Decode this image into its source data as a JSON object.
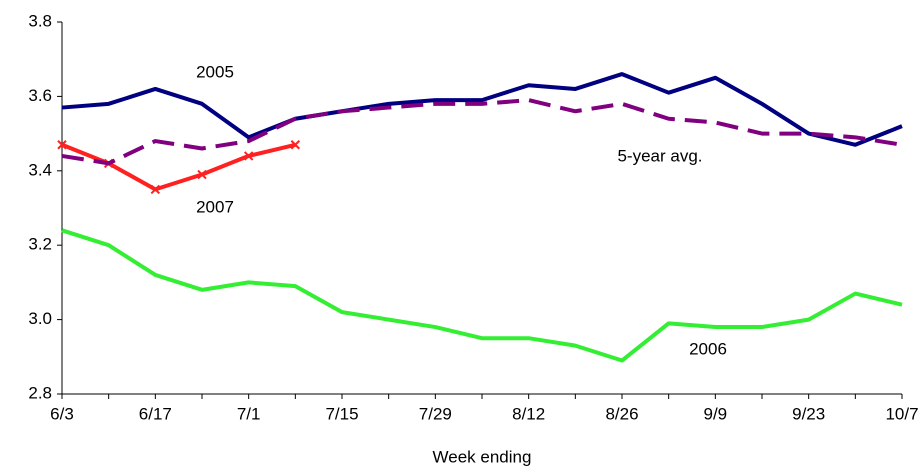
{
  "chart_data": {
    "type": "line",
    "x_label": "Week ending",
    "categories": [
      "6/3",
      null,
      "6/17",
      null,
      "7/1",
      null,
      "7/15",
      null,
      "7/29",
      null,
      "8/12",
      null,
      "8/26",
      null,
      "9/9",
      null,
      "9/23",
      null,
      "10/7"
    ],
    "series": [
      {
        "name": "2005",
        "color": "#000080",
        "values": [
          3.57,
          3.58,
          3.62,
          3.58,
          3.49,
          3.54,
          3.56,
          3.58,
          3.59,
          3.59,
          3.63,
          3.62,
          3.66,
          3.61,
          3.65,
          3.58,
          3.5,
          3.47,
          3.52
        ]
      },
      {
        "name": "2006",
        "color": "#33ee33",
        "values": [
          3.24,
          3.2,
          3.12,
          3.08,
          3.1,
          3.09,
          3.02,
          3.0,
          2.98,
          2.95,
          2.95,
          2.93,
          2.89,
          2.99,
          2.98,
          2.98,
          3.0,
          3.07,
          3.04
        ]
      },
      {
        "name": "2007",
        "color": "#ff2020",
        "values": [
          3.47,
          3.42,
          3.35,
          3.39,
          3.44,
          3.47,
          null,
          null,
          null,
          null,
          null,
          null,
          null,
          null,
          null,
          null,
          null,
          null,
          null
        ]
      },
      {
        "name": "5-year avg.",
        "color": "#800080",
        "dashed": true,
        "values": [
          3.44,
          3.42,
          3.48,
          3.46,
          3.48,
          3.54,
          3.56,
          3.57,
          3.58,
          3.58,
          3.59,
          3.56,
          3.58,
          3.54,
          3.53,
          3.5,
          3.5,
          3.49,
          3.47
        ]
      }
    ],
    "ylim": [
      2.8,
      3.8
    ],
    "yticks": [
      2.8,
      {
        "value": 3.0,
        "label": "3.0"
      },
      3.2,
      3.4,
      3.6,
      3.8
    ],
    "grid": false
  }
}
